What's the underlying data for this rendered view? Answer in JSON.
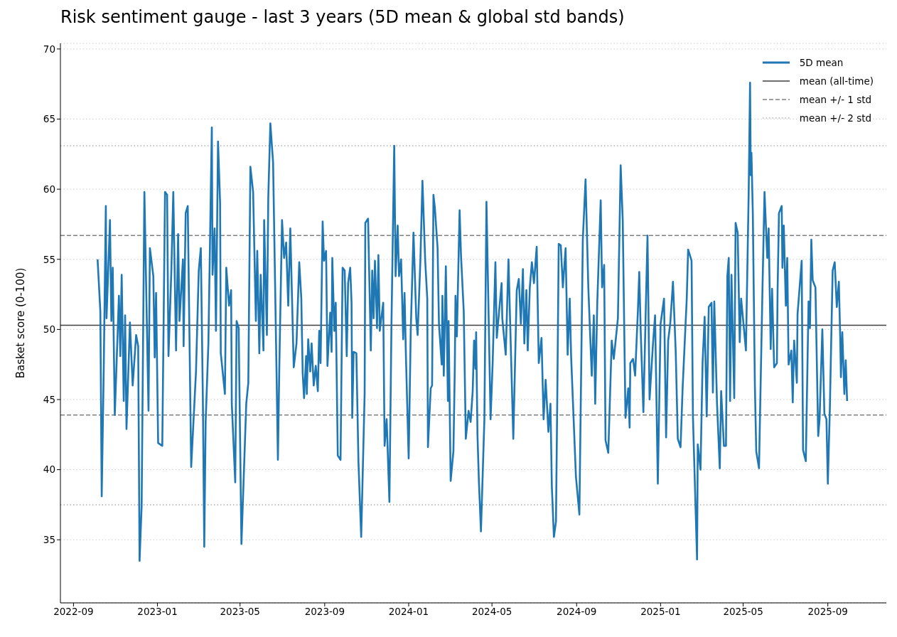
{
  "chart_data": {
    "type": "line",
    "title": "Risk sentiment gauge - last 3 years (5D mean & global std bands)",
    "ylabel": "Basket score (0-100)",
    "xlim": [
      "2022-08-13",
      "2025-11-25"
    ],
    "xticks": [
      "2022-09",
      "2023-01",
      "2023-05",
      "2023-09",
      "2024-01",
      "2024-05",
      "2024-09",
      "2025-01",
      "2025-05",
      "2025-09"
    ],
    "ylim": [
      30.5,
      70.4
    ],
    "yticks": [
      35,
      40,
      45,
      50,
      55,
      60,
      65,
      70
    ],
    "grid": "y",
    "legend": "top right",
    "ref_lines": [
      {
        "axis": "y",
        "value": 50.3,
        "label": "mean (all-time)",
        "color": "#404040",
        "line_style": "solid"
      },
      {
        "axis": "y",
        "value": 56.7,
        "label": "mean +/- 1 std",
        "color": "#808080",
        "line_style": "dashed"
      },
      {
        "axis": "y",
        "value": 43.9,
        "color": "#808080",
        "line_style": "dashed"
      },
      {
        "axis": "y",
        "value": 63.1,
        "label": "mean +/- 2 std",
        "color": "#b0b0b0",
        "line_style": "dotted"
      },
      {
        "axis": "y",
        "value": 37.5,
        "color": "#b0b0b0",
        "line_style": "dotted"
      }
    ],
    "series": [
      {
        "name": "5D mean",
        "color": "#1f77b4",
        "x": [
          "2022-10-06",
          "2022-10-10",
          "2022-10-12",
          "2022-10-15",
          "2022-10-18",
          "2022-10-19",
          "2022-10-24",
          "2022-10-26",
          "2022-10-28",
          "2022-10-31",
          "2022-11-06",
          "2022-11-08",
          "2022-11-10",
          "2022-11-13",
          "2022-11-15",
          "2022-11-17",
          "2022-11-22",
          "2022-11-26",
          "2022-12-01",
          "2022-12-04",
          "2022-12-06",
          "2022-12-09",
          "2022-12-13",
          "2022-12-19",
          "2022-12-21",
          "2022-12-26",
          "2022-12-28",
          "2022-12-30",
          "2023-01-02",
          "2023-01-08",
          "2023-01-12",
          "2023-01-15",
          "2023-01-17",
          "2023-01-21",
          "2023-01-24",
          "2023-01-28",
          "2023-01-31",
          "2023-02-02",
          "2023-02-07",
          "2023-02-08",
          "2023-02-11",
          "2023-02-14",
          "2023-02-19",
          "2023-02-26",
          "2023-03-02",
          "2023-03-05",
          "2023-03-08",
          "2023-03-10",
          "2023-03-12",
          "2023-03-16",
          "2023-03-21",
          "2023-03-22",
          "2023-03-25",
          "2023-03-27",
          "2023-03-30",
          "2023-04-02",
          "2023-04-03",
          "2023-04-09",
          "2023-04-11",
          "2023-04-15",
          "2023-04-18",
          "2023-04-19",
          "2023-04-24",
          "2023-04-26",
          "2023-04-29",
          "2023-05-03",
          "2023-05-10",
          "2023-05-13",
          "2023-05-16",
          "2023-05-20",
          "2023-05-24",
          "2023-05-26",
          "2023-05-29",
          "2023-05-31",
          "2023-06-04",
          "2023-06-05",
          "2023-06-09",
          "2023-06-11",
          "2023-06-14",
          "2023-06-18",
          "2023-06-23",
          "2023-06-25",
          "2023-06-27",
          "2023-07-01",
          "2023-07-04",
          "2023-07-07",
          "2023-07-10",
          "2023-07-13",
          "2023-07-18",
          "2023-07-22",
          "2023-07-26",
          "2023-07-29",
          "2023-07-31",
          "2023-08-02",
          "2023-08-05",
          "2023-08-06",
          "2023-08-08",
          "2023-08-11",
          "2023-08-13",
          "2023-08-16",
          "2023-08-19",
          "2023-08-22",
          "2023-08-24",
          "2023-08-26",
          "2023-08-29",
          "2023-08-31",
          "2023-09-03",
          "2023-09-05",
          "2023-09-09",
          "2023-09-11",
          "2023-09-12",
          "2023-09-15",
          "2023-09-17",
          "2023-09-20",
          "2023-09-24",
          "2023-09-27",
          "2023-09-30",
          "2023-10-03",
          "2023-10-05",
          "2023-10-08",
          "2023-10-10",
          "2023-10-11",
          "2023-10-13",
          "2023-10-17",
          "2023-10-20",
          "2023-10-24",
          "2023-10-29",
          "2023-10-30",
          "2023-11-03",
          "2023-11-07",
          "2023-11-09",
          "2023-11-11",
          "2023-11-13",
          "2023-11-16",
          "2023-11-18",
          "2023-11-20",
          "2023-11-25",
          "2023-11-27",
          "2023-11-30",
          "2023-12-04",
          "2023-12-07",
          "2023-12-11",
          "2023-12-13",
          "2023-12-16",
          "2023-12-18",
          "2023-12-21",
          "2023-12-24",
          "2023-12-26",
          "2023-12-28",
          "2024-01-01",
          "2024-01-04",
          "2024-01-08",
          "2024-01-12",
          "2024-01-14",
          "2024-01-18",
          "2024-01-21",
          "2024-01-25",
          "2024-01-28",
          "2024-01-29",
          "2024-02-02",
          "2024-02-04",
          "2024-02-06",
          "2024-02-08",
          "2024-02-12",
          "2024-02-14",
          "2024-02-18",
          "2024-02-19",
          "2024-02-21",
          "2024-02-24",
          "2024-02-27",
          "2024-02-28",
          "2024-03-02",
          "2024-03-06",
          "2024-03-08",
          "2024-03-09",
          "2024-03-11",
          "2024-03-15",
          "2024-03-17",
          "2024-03-21",
          "2024-03-24",
          "2024-03-28",
          "2024-03-31",
          "2024-04-03",
          "2024-04-05",
          "2024-04-07",
          "2024-04-08",
          "2024-04-10",
          "2024-04-12",
          "2024-04-15",
          "2024-04-20",
          "2024-04-23",
          "2024-04-29",
          "2024-05-02",
          "2024-05-06",
          "2024-05-08",
          "2024-05-15",
          "2024-05-16",
          "2024-05-21",
          "2024-05-25",
          "2024-05-27",
          "2024-06-01",
          "2024-06-06",
          "2024-06-09",
          "2024-06-12",
          "2024-06-15",
          "2024-06-17",
          "2024-06-20",
          "2024-06-22",
          "2024-06-25",
          "2024-06-28",
          "2024-07-01",
          "2024-07-05",
          "2024-07-08",
          "2024-07-12",
          "2024-07-15",
          "2024-07-18",
          "2024-07-22",
          "2024-07-25",
          "2024-07-27",
          "2024-07-30",
          "2024-08-02",
          "2024-08-04",
          "2024-08-06",
          "2024-08-09",
          "2024-08-12",
          "2024-08-16",
          "2024-08-19",
          "2024-08-22",
          "2024-08-24",
          "2024-08-31",
          "2024-09-05",
          "2024-09-10",
          "2024-09-14",
          "2024-09-18",
          "2024-09-23",
          "2024-09-26",
          "2024-09-28",
          "2024-10-01",
          "2024-10-06",
          "2024-10-08",
          "2024-10-11",
          "2024-10-13",
          "2024-10-17",
          "2024-10-22",
          "2024-10-25",
          "2024-10-31",
          "2024-11-04",
          "2024-11-07",
          "2024-11-11",
          "2024-11-15",
          "2024-11-17",
          "2024-11-18",
          "2024-11-22",
          "2024-11-25",
          "2024-11-29",
          "2024-12-01",
          "2024-12-03",
          "2024-12-07",
          "2024-12-10",
          "2024-12-13",
          "2024-12-16",
          "2024-12-21",
          "2024-12-24",
          "2024-12-28",
          "2025-01-01",
          "2025-01-06",
          "2025-01-09",
          "2025-01-12",
          "2025-01-15",
          "2025-01-19",
          "2025-01-23",
          "2025-01-26",
          "2025-01-30",
          "2025-02-02",
          "2025-02-08",
          "2025-02-10",
          "2025-02-15",
          "2025-02-17",
          "2025-02-23",
          "2025-02-24",
          "2025-02-28",
          "2025-03-03",
          "2025-03-06",
          "2025-03-09",
          "2025-03-12",
          "2025-03-16",
          "2025-03-18",
          "2025-03-20",
          "2025-03-24",
          "2025-03-28",
          "2025-03-30",
          "2025-04-03",
          "2025-04-06",
          "2025-04-08",
          "2025-04-10",
          "2025-04-12",
          "2025-04-14",
          "2025-04-18",
          "2025-04-20",
          "2025-04-23",
          "2025-04-26",
          "2025-04-28",
          "2025-05-02",
          "2025-05-05",
          "2025-05-09",
          "2025-05-11",
          "2025-05-12",
          "2025-05-13",
          "2025-05-15",
          "2025-05-18",
          "2025-05-20",
          "2025-05-24",
          "2025-05-29",
          "2025-06-01",
          "2025-06-05",
          "2025-06-07",
          "2025-06-10",
          "2025-06-12",
          "2025-06-15",
          "2025-06-19",
          "2025-06-20",
          "2025-06-22",
          "2025-06-26",
          "2025-06-27",
          "2025-06-29",
          "2025-07-02",
          "2025-07-04",
          "2025-07-06",
          "2025-07-10",
          "2025-07-12",
          "2025-07-14",
          "2025-07-18",
          "2025-07-19",
          "2025-07-25",
          "2025-07-27",
          "2025-07-31",
          "2025-08-04",
          "2025-08-06",
          "2025-08-08",
          "2025-08-10",
          "2025-08-14",
          "2025-08-18",
          "2025-08-20",
          "2025-08-24",
          "2025-08-27",
          "2025-08-30",
          "2025-09-01",
          "2025-09-04",
          "2025-09-06",
          "2025-09-08",
          "2025-09-11",
          "2025-09-14",
          "2025-09-17",
          "2025-09-19",
          "2025-09-20",
          "2025-09-22",
          "2025-09-25",
          "2025-09-27",
          "2025-09-29"
        ],
        "values": [
          55.0,
          51.3,
          38.1,
          47.4,
          58.8,
          50.8,
          57.8,
          50.6,
          54.4,
          43.9,
          52.4,
          48.1,
          53.9,
          44.9,
          51.0,
          42.9,
          50.5,
          46.0,
          49.6,
          48.8,
          33.5,
          37.4,
          59.8,
          44.2,
          55.8,
          53.8,
          48.0,
          52.6,
          41.9,
          41.7,
          59.8,
          59.6,
          48.1,
          53.9,
          59.8,
          48.5,
          56.8,
          50.6,
          55.0,
          48.8,
          58.3,
          58.8,
          40.2,
          47.0,
          54.2,
          55.8,
          44.9,
          34.5,
          43.4,
          49.0,
          64.4,
          53.9,
          57.2,
          49.9,
          63.4,
          59.0,
          48.3,
          45.4,
          54.4,
          51.7,
          52.8,
          44.7,
          39.1,
          50.6,
          50.1,
          34.7,
          44.7,
          46.2,
          61.6,
          59.8,
          50.6,
          55.6,
          48.3,
          53.9,
          48.5,
          57.8,
          49.6,
          59.4,
          64.7,
          61.9,
          47.0,
          40.7,
          47.2,
          57.8,
          55.1,
          56.2,
          51.7,
          57.2,
          47.3,
          49.0,
          54.8,
          52.2,
          46.9,
          45.1,
          48.1,
          45.4,
          49.3,
          47.0,
          49.0,
          46.0,
          47.4,
          45.6,
          49.9,
          47.6,
          57.7,
          54.9,
          55.6,
          47.4,
          51.2,
          48.4,
          55.1,
          49.9,
          51.9,
          41.0,
          40.7,
          54.4,
          54.2,
          48.1,
          53.3,
          54.4,
          51.9,
          43.7,
          48.4,
          48.3,
          40.6,
          35.2,
          45.4,
          57.6,
          57.9,
          48.5,
          54.2,
          50.8,
          54.9,
          50.1,
          55.3,
          49.9,
          51.9,
          41.7,
          43.6,
          37.7,
          50.4,
          63.1,
          53.8,
          57.4,
          53.8,
          55.0,
          49.3,
          52.6,
          48.1,
          40.8,
          49.9,
          56.9,
          50.8,
          49.6,
          54.9,
          60.6,
          54.9,
          52.2,
          41.6,
          45.8,
          46.0,
          59.6,
          58.7,
          55.8,
          50.4,
          47.5,
          52.4,
          46.7,
          54.5,
          44.9,
          50.6,
          39.2,
          41.3,
          47.2,
          52.4,
          49.5,
          58.5,
          55.3,
          51.3,
          42.2,
          44.2,
          43.4,
          45.6,
          49.2,
          47.2,
          49.8,
          42.4,
          39.2,
          35.6,
          43.6,
          59.1,
          43.6,
          47.6,
          54.8,
          49.4,
          53.3,
          50.8,
          48.2,
          55.0,
          51.3,
          42.2,
          52.8,
          53.6,
          50.4,
          54.3,
          49.0,
          52.8,
          48.5,
          53.0,
          54.8,
          53.3,
          55.9,
          47.6,
          49.4,
          43.6,
          46.4,
          42.7,
          44.7,
          38.8,
          35.2,
          36.3,
          45.6,
          56.1,
          56.0,
          53.0,
          55.8,
          48.2,
          52.2,
          48.1,
          39.5,
          36.8,
          56.4,
          60.7,
          53.0,
          46.7,
          51.0,
          44.7,
          51.9,
          59.2,
          53.0,
          54.6,
          42.1,
          41.2,
          49.2,
          47.9,
          50.8,
          61.7,
          57.8,
          43.7,
          45.8,
          43.0,
          47.6,
          47.9,
          46.7,
          51.3,
          54.1,
          50.1,
          44.1,
          50.4,
          56.7,
          45.0,
          49.0,
          51.0,
          39.0,
          50.4,
          52.2,
          42.3,
          49.2,
          50.4,
          53.4,
          48.4,
          42.2,
          41.6,
          45.8,
          52.2,
          55.7,
          54.9,
          43.8,
          33.6,
          41.8,
          40.0,
          47.6,
          50.9,
          43.8,
          51.6,
          51.9,
          45.5,
          52.0,
          44.7,
          40.1,
          45.6,
          41.7,
          41.7,
          53.8,
          55.1,
          44.9,
          53.9,
          45.1,
          57.6,
          56.9,
          49.1,
          52.2,
          50.1,
          48.5,
          59.8,
          67.6,
          61.0,
          62.6,
          58.3,
          46.0,
          41.3,
          40.1,
          52.8,
          59.8,
          55.1,
          57.2,
          48.6,
          52.9,
          47.3,
          47.6,
          52.8,
          58.3,
          58.8,
          54.4,
          57.4,
          51.7,
          55.1,
          47.5,
          48.5,
          44.8,
          49.2,
          46.2,
          51.1,
          54.9,
          41.4,
          40.6,
          52.0,
          50.1,
          56.4,
          53.5,
          53.0,
          42.4,
          43.6,
          50.0,
          44.0,
          43.6,
          39.0,
          44.5,
          49.4,
          54.2,
          54.8,
          51.6,
          53.4,
          49.4,
          46.6,
          49.8,
          45.4,
          47.8,
          44.9
        ]
      }
    ]
  }
}
